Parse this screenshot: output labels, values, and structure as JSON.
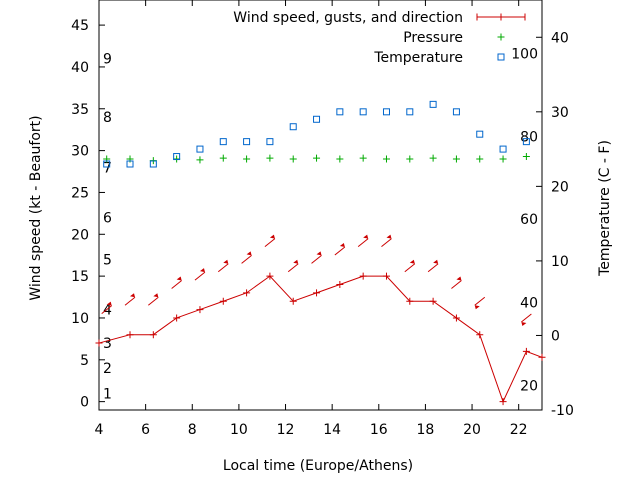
{
  "chart_data": {
    "type": "line",
    "xlabel": "Local time (Europe/Athens)",
    "ylabel": "Wind speed (kt - Beaufort)",
    "y2label": "Temperature (C - F)",
    "xlim": [
      4,
      23
    ],
    "ylim": [
      -1,
      48
    ],
    "y2lim": [
      -10,
      45
    ],
    "x_ticks": [
      4,
      6,
      8,
      10,
      12,
      14,
      16,
      18,
      20,
      22
    ],
    "y_ticks": [
      0,
      5,
      10,
      15,
      20,
      25,
      30,
      35,
      40,
      45
    ],
    "y2_ticks": [
      -10,
      0,
      10,
      20,
      30,
      40
    ],
    "beaufort_labels": [
      {
        "text": "1",
        "kt": 1
      },
      {
        "text": "2",
        "kt": 4
      },
      {
        "text": "3",
        "kt": 7
      },
      {
        "text": "4",
        "kt": 11
      },
      {
        "text": "5",
        "kt": 17
      },
      {
        "text": "6",
        "kt": 22
      },
      {
        "text": "7",
        "kt": 28
      },
      {
        "text": "8",
        "kt": 34
      },
      {
        "text": "9",
        "kt": 41
      }
    ],
    "fahrenheit_labels": [
      {
        "text": "20",
        "c": -6.7
      },
      {
        "text": "40",
        "c": 4.4
      },
      {
        "text": "60",
        "c": 15.6
      },
      {
        "text": "80",
        "c": 26.7
      },
      {
        "text": "100",
        "c": 37.8
      }
    ],
    "legend": {
      "position": "top-right",
      "entries": [
        "Wind speed, gusts, and direction",
        "Pressure",
        "Temperature"
      ]
    },
    "colors": {
      "wind": "#cc0000",
      "pressure": "#00aa00",
      "temperature": "#0066cc"
    },
    "series": [
      {
        "name": "Wind speed, gusts, and direction",
        "x": [
          4,
          5.33,
          6.33,
          7.33,
          8.33,
          9.33,
          10.33,
          11.33,
          12.33,
          13.33,
          14.33,
          15.33,
          16.33,
          17.33,
          18.33,
          19.33,
          20.33,
          21.33,
          22.33,
          23
        ],
        "values": [
          7,
          8,
          8,
          10,
          11,
          12,
          13,
          15,
          12,
          13,
          14,
          15,
          15,
          12,
          12,
          10,
          8,
          0,
          6,
          5.3
        ]
      },
      {
        "name": "Wind arrows",
        "x": [
          4.33,
          5.33,
          6.33,
          7.33,
          8.33,
          9.33,
          10.33,
          11.33,
          12.33,
          13.33,
          14.33,
          15.33,
          16.33,
          17.33,
          18.33,
          19.33,
          20.33,
          22.33
        ],
        "values": [
          11,
          12,
          12,
          14,
          15,
          16,
          17,
          19,
          16,
          17,
          18,
          19,
          19,
          16,
          16,
          14,
          12,
          10
        ],
        "direction": [
          "NE",
          "NE",
          "NE",
          "NE",
          "NE",
          "NE",
          "NE",
          "NE",
          "NE",
          "NE",
          "NE",
          "NE",
          "NE",
          "NE",
          "NE",
          "NE",
          "SW",
          "SW"
        ]
      },
      {
        "name": "Pressure",
        "x": [
          4.33,
          5.33,
          6.33,
          7.33,
          8.33,
          9.33,
          10.33,
          11.33,
          12.33,
          13.33,
          14.33,
          15.33,
          16.33,
          17.33,
          18.33,
          19.33,
          20.33,
          21.33,
          22.33
        ],
        "values": [
          29,
          29,
          28.8,
          29,
          28.9,
          29.1,
          29,
          29.1,
          29,
          29.1,
          29,
          29.1,
          29,
          29,
          29.1,
          29,
          29,
          29,
          29.3
        ]
      },
      {
        "name": "Temperature",
        "x": [
          4.33,
          5.33,
          6.33,
          7.33,
          8.33,
          9.33,
          10.33,
          11.33,
          12.33,
          13.33,
          14.33,
          15.33,
          16.33,
          17.33,
          18.33,
          19.33,
          20.33,
          21.33,
          22.33
        ],
        "values": [
          23,
          23,
          23,
          24,
          25,
          26,
          26,
          26,
          28,
          29,
          30,
          30,
          30,
          30,
          31,
          30,
          27,
          25,
          26
        ]
      }
    ]
  }
}
